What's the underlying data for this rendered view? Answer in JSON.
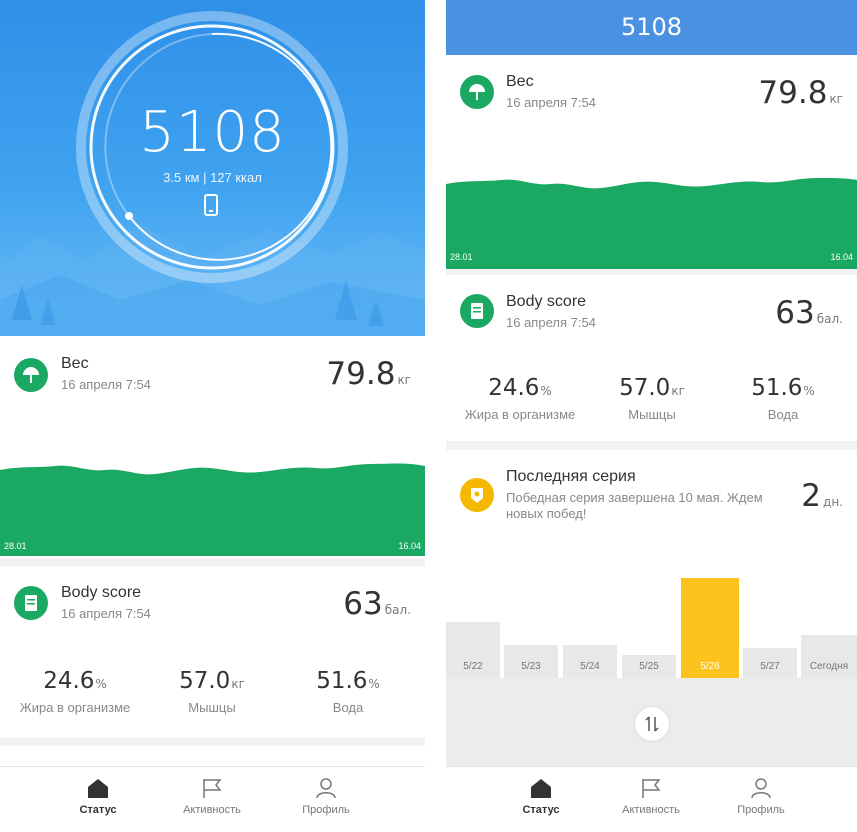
{
  "hero": {
    "steps": "5108",
    "distance_calories": "3.5 км | 127 ккал"
  },
  "weight": {
    "title": "Вес",
    "date": "16 апреля 7:54",
    "value": "79.8",
    "unit": "кг",
    "start_label": "28.01",
    "end_label": "16.04",
    "color": "#1aa862"
  },
  "body_score": {
    "title": "Body score",
    "date": "16 апреля 7:54",
    "value": "63",
    "unit": "бал.",
    "stats": [
      {
        "value": "24.6",
        "unit": "%",
        "label": "Жира в организме"
      },
      {
        "value": "57.0",
        "unit": "кг",
        "label": "Мышцы"
      },
      {
        "value": "51.6",
        "unit": "%",
        "label": "Вода"
      }
    ]
  },
  "streak": {
    "title": "Последняя серия",
    "description": "Победная серия завершена 10 мая. Ждем новых побед!",
    "value": "2",
    "unit": "дн.",
    "color": "#fcc31d",
    "days": [
      {
        "label": "5/22",
        "active": false
      },
      {
        "label": "5/23",
        "active": false
      },
      {
        "label": "5/24",
        "active": false
      },
      {
        "label": "5/25",
        "active": false
      },
      {
        "label": "5/26",
        "active": true
      },
      {
        "label": "5/27",
        "active": false
      },
      {
        "label": "Сегодня",
        "active": false
      }
    ]
  },
  "tabs": [
    {
      "label": "Статус",
      "icon": "home-icon",
      "active": true
    },
    {
      "label": "Активность",
      "icon": "flag-icon",
      "active": false
    },
    {
      "label": "Профиль",
      "icon": "user-icon",
      "active": false
    }
  ],
  "top_bar": {
    "steps": "5108"
  },
  "colors": {
    "accent_blue": "#4a91e2",
    "green": "#1aa862",
    "yellow": "#fcc31d"
  }
}
